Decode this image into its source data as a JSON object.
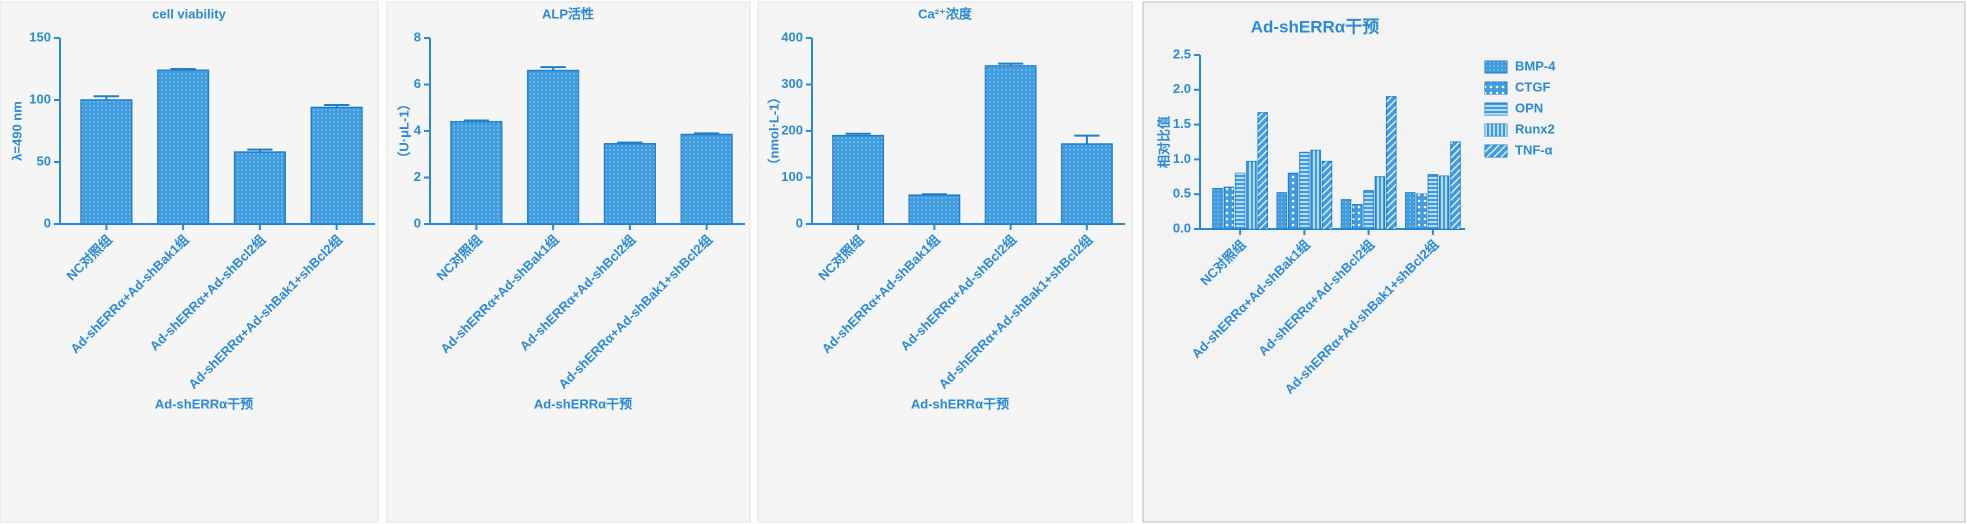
{
  "chart_data": [
    {
      "type": "bar",
      "title": "cell viability",
      "y_label": "λ=490 nm",
      "x_label": "Ad-shERRα干预",
      "categories": [
        "NC对照组",
        "Ad-shERRα+Ad-shBak1组",
        "Ad-shERRα+Ad-shBcl2组",
        "Ad-shERRα+Ad-shBak1+shBcl2组"
      ],
      "values": [
        100,
        124,
        58,
        94
      ],
      "errors": [
        3,
        1,
        2,
        2
      ],
      "color": "#3f9de0",
      "ylim": [
        0,
        150
      ],
      "yticks": [
        0,
        50,
        100,
        150
      ]
    },
    {
      "type": "bar",
      "title": "ALP活性",
      "y_label": "（U·μL-1）",
      "x_label": "Ad-shERRα干预",
      "categories": [
        "NC对照组",
        "Ad-shERRα+Ad-shBak1组",
        "Ad-shERRα+Ad-shBcl2组",
        "Ad-shERRα+Ad-shBak1+shBcl2组"
      ],
      "values": [
        4.4,
        6.6,
        3.45,
        3.85
      ],
      "errors": [
        0.05,
        0.15,
        0.05,
        0.05
      ],
      "color": "#3f9de0",
      "ylim": [
        0,
        8
      ],
      "yticks": [
        0,
        2,
        4,
        6,
        8
      ]
    },
    {
      "type": "bar",
      "title": "Ca²⁺浓度",
      "y_label": "（nmol·L-1）",
      "x_label": "Ad-shERRα干预",
      "categories": [
        "NC对照组",
        "Ad-shERRα+Ad-shBak1组",
        "Ad-shERRα+Ad-shBcl2组",
        "Ad-shERRα+Ad-shBak1+shBcl2组"
      ],
      "values": [
        190,
        62,
        340,
        172
      ],
      "errors": [
        4,
        2,
        5,
        18
      ],
      "color": "#3f9de0",
      "ylim": [
        0,
        400
      ],
      "yticks": [
        0,
        100,
        200,
        300,
        400
      ]
    },
    {
      "type": "grouped-bar",
      "title": "Ad-shERRα干预",
      "y_label": "相对比值",
      "categories": [
        "NC对照组",
        "Ad-shERRα+Ad-shBak1组",
        "Ad-shERRα+Ad-shBcl2组",
        "Ad-shERRα+Ad-shBak1+shBcl2组"
      ],
      "series": [
        {
          "name": "BMP-4",
          "color": "#3f9de0",
          "values": [
            0.58,
            0.52,
            0.42,
            0.52
          ]
        },
        {
          "name": "CTGF",
          "color": "#3f9de0",
          "values": [
            0.6,
            0.8,
            0.35,
            0.5
          ]
        },
        {
          "name": "OPN",
          "color": "#3f9de0",
          "values": [
            0.8,
            1.1,
            0.55,
            0.78
          ]
        },
        {
          "name": "Runx2",
          "color": "#3f9de0",
          "values": [
            0.97,
            1.13,
            0.75,
            0.76
          ]
        },
        {
          "name": "TNF-α",
          "color": "#3f9de0",
          "values": [
            1.67,
            0.97,
            1.9,
            1.25
          ]
        }
      ],
      "ylim": [
        0,
        2.5
      ],
      "yticks": [
        {
          "value": 0,
          "label": "0.0"
        },
        0.5,
        {
          "value": 1,
          "label": "1.0"
        },
        1.5,
        {
          "value": 2,
          "label": "2.0"
        },
        2.5
      ],
      "legend": "right"
    }
  ]
}
